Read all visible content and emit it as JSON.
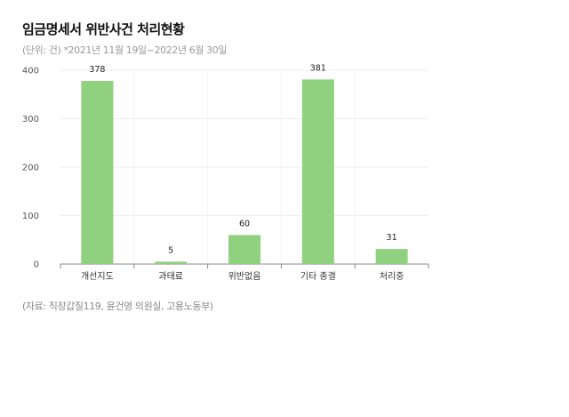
{
  "title": "임금명세서 위반사건 처리현황",
  "subtitle": "(단위: 건) *2021년 11월 19일~2022년 6월 30일",
  "source": "(자료: 직장갑질119, 윤건영 의원실, 고용노동부)",
  "chart_data": {
    "type": "bar",
    "categories": [
      "개선지도",
      "과태료",
      "위반없음",
      "기타 종결",
      "처리중"
    ],
    "values": [
      378,
      5,
      60,
      381,
      31
    ],
    "data_labels": [
      "378",
      "5",
      "60",
      "381",
      "31"
    ],
    "ylim": [
      0,
      400
    ],
    "yticks": [
      0,
      100,
      200,
      300,
      400
    ],
    "grid": true,
    "legend": "none",
    "bar_color": "#8fd17e"
  }
}
